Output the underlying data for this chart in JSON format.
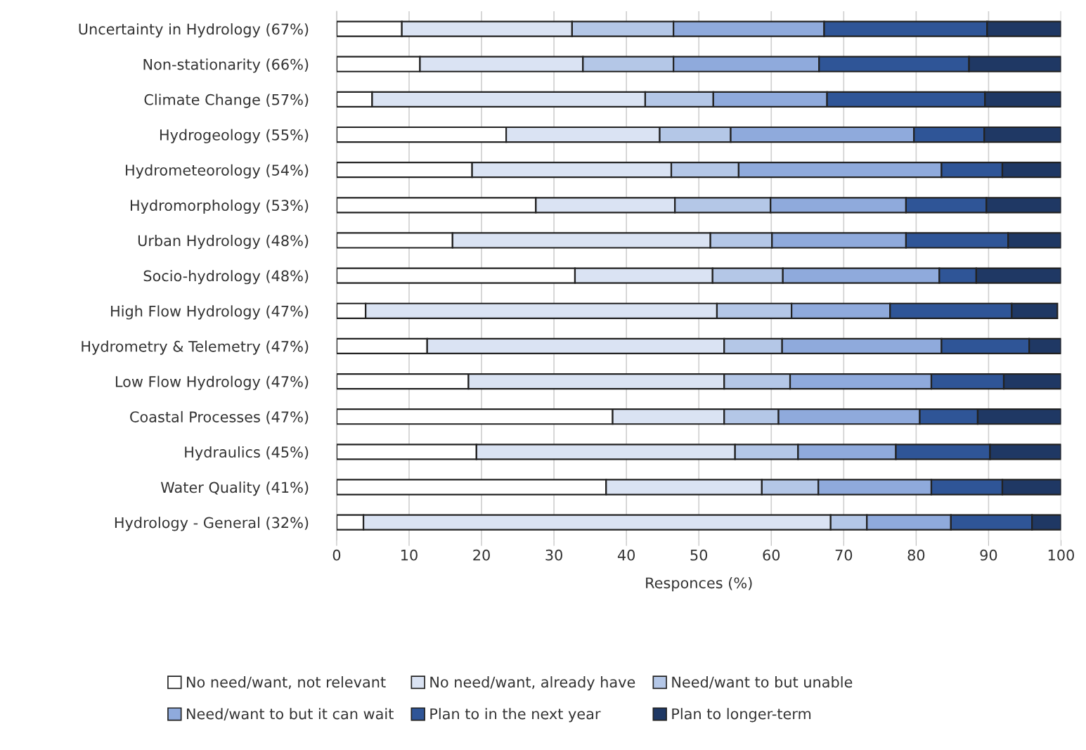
{
  "chart_data": {
    "type": "bar",
    "orientation": "horizontal",
    "stacked": true,
    "xlabel": "Responces (%)",
    "xlim": [
      0,
      100
    ],
    "xticks": [
      0,
      10,
      20,
      30,
      40,
      50,
      60,
      70,
      80,
      90,
      100
    ],
    "grid": "x",
    "legend": "bottom",
    "categories": [
      "Uncertainty in Hydrology (67%)",
      "Non-stationarity (66%)",
      "Climate Change (57%)",
      "Hydrogeology (55%)",
      "Hydrometeorology (54%)",
      "Hydromorphology (53%)",
      "Urban Hydrology (48%)",
      "Socio-hydrology (48%)",
      "High Flow Hydrology (47%)",
      "Hydrometry & Telemetry (47%)",
      "Low Flow Hydrology (47%)",
      "Coastal Processes (47%)",
      "Hydraulics (45%)",
      "Water Quality (41%)",
      "Hydrology - General (32%)"
    ],
    "series": [
      {
        "name": "No need/want, not relevant",
        "color": "#ffffff",
        "values": [
          9,
          11.5,
          4.9,
          23.4,
          18.7,
          27.5,
          16,
          32.9,
          4,
          12.5,
          18.2,
          38.1,
          19.3,
          37.2,
          3.7
        ]
      },
      {
        "name": "No need/want, already have",
        "color": "#dae3f3",
        "values": [
          23.5,
          22.5,
          37.7,
          21.2,
          27.5,
          19.2,
          35.6,
          19,
          48.5,
          41,
          35.3,
          15.4,
          35.7,
          21.5,
          64.5
        ]
      },
      {
        "name": "Need/want to but unable",
        "color": "#b4c7e7",
        "values": [
          14,
          12.5,
          9.4,
          9.8,
          9.3,
          13.2,
          8.5,
          9.7,
          10.3,
          8,
          9.1,
          7.5,
          8.7,
          7.8,
          5
        ]
      },
      {
        "name": "Need/want to but it can wait",
        "color": "#8faadc",
        "values": [
          20.8,
          20.1,
          15.7,
          25.3,
          28,
          18.7,
          18.5,
          21.6,
          13.6,
          22,
          19.5,
          19.5,
          13.5,
          15.6,
          11.6
        ]
      },
      {
        "name": "Plan to in the next year",
        "color": "#2f5597",
        "values": [
          22.5,
          20.7,
          21.8,
          9.7,
          8.4,
          11.1,
          14.1,
          5.1,
          16.8,
          12.1,
          10,
          8,
          13,
          9.8,
          11.2
        ]
      },
      {
        "name": "Plan to longer-term",
        "color": "#1f3864",
        "values": [
          10.2,
          12.7,
          10.5,
          10.6,
          8.1,
          10.3,
          7.3,
          11.7,
          6.3,
          4.4,
          7.9,
          11.5,
          9.8,
          8.1,
          4
        ]
      }
    ]
  }
}
